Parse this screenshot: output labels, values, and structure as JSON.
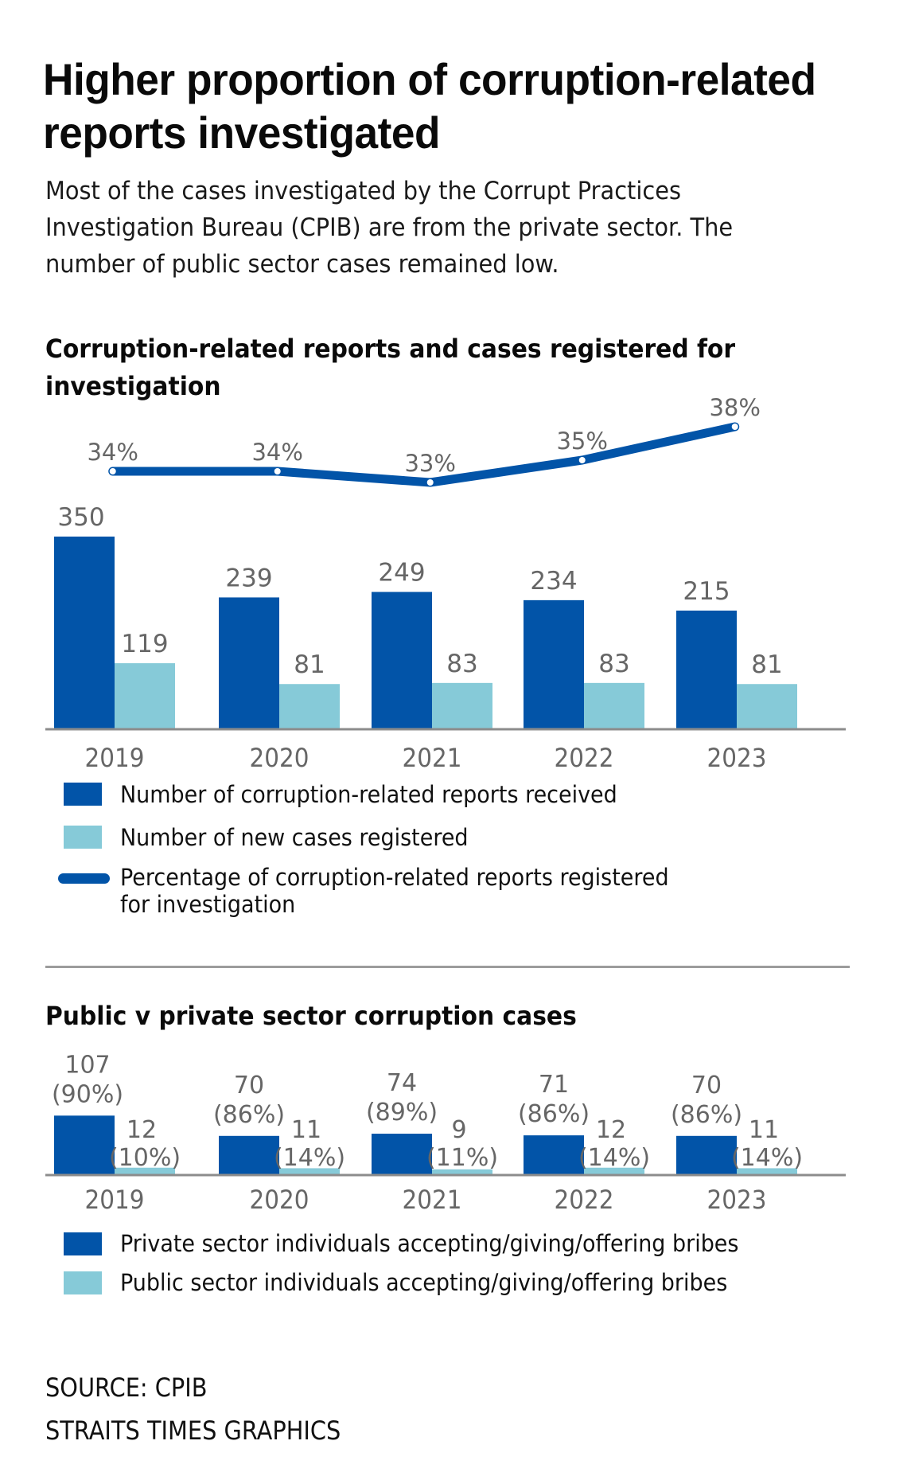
{
  "header": {
    "title": "Higher proportion of corruption-related reports investigated",
    "subtitle": "Most of the cases investigated by the Corrupt Practices Investigation Bureau (CPIB) are from the private sector. The number of public sector cases remained low."
  },
  "colors": {
    "dark_blue": "#0254a8",
    "light_blue": "#86cad8",
    "label_gray": "#666666",
    "axis_gray": "#8c8c8c"
  },
  "chart_data": [
    {
      "type": "bar",
      "title": "Corruption-related reports and cases registered for investigation",
      "categories": [
        "2019",
        "2020",
        "2021",
        "2022",
        "2023"
      ],
      "series": [
        {
          "name": "Number of corruption-related reports received",
          "kind": "bar",
          "color": "#0254a8",
          "values": [
            350,
            239,
            249,
            234,
            215
          ],
          "labels": [
            "350",
            "239",
            "249",
            "234",
            "215"
          ]
        },
        {
          "name": "Number of new cases registered",
          "kind": "bar",
          "color": "#86cad8",
          "values": [
            119,
            81,
            83,
            83,
            81
          ],
          "labels": [
            "119",
            "81",
            "83",
            "83",
            "81"
          ]
        },
        {
          "name": "Percentage of corruption-related reports registered for investigation",
          "kind": "line",
          "color": "#0254a8",
          "values": [
            34,
            34,
            33,
            35,
            38
          ],
          "labels": [
            "34%",
            "34%",
            "33%",
            "35%",
            "38%"
          ]
        }
      ],
      "xlabel": "",
      "ylabel": "",
      "ylim": [
        0,
        350
      ],
      "grid": false,
      "legend": "bottom-left"
    },
    {
      "type": "bar",
      "title": "Public v private sector corruption cases",
      "categories": [
        "2019",
        "2020",
        "2021",
        "2022",
        "2023"
      ],
      "series": [
        {
          "name": "Private sector individuals accepting/giving/offering bribes",
          "color": "#0254a8",
          "values": [
            107,
            70,
            74,
            71,
            70
          ],
          "share_pct": [
            90,
            86,
            89,
            86,
            86
          ],
          "labels": [
            "107",
            "70",
            "74",
            "71",
            "70"
          ],
          "pct_labels": [
            "(90%)",
            "(86%)",
            "(89%)",
            "(86%)",
            "(86%)"
          ]
        },
        {
          "name": "Public sector individuals accepting/giving/offering bribes",
          "color": "#86cad8",
          "values": [
            12,
            11,
            9,
            12,
            11
          ],
          "share_pct": [
            10,
            14,
            11,
            14,
            14
          ],
          "labels": [
            "12",
            "11",
            "9",
            "12",
            "11"
          ],
          "pct_labels": [
            "(10%)",
            "(14%)",
            "(11%)",
            "(14%)",
            "(14%)"
          ]
        }
      ],
      "xlabel": "",
      "ylabel": "",
      "ylim": [
        0,
        350
      ],
      "grid": false,
      "legend": "bottom-left"
    }
  ],
  "legend1": {
    "items": [
      "Number of corruption-related reports received",
      "Number of new cases registered",
      "Percentage of corruption-related reports registered",
      "for investigation"
    ]
  },
  "legend2": {
    "items": [
      "Private sector individuals accepting/giving/offering bribes",
      "Public sector individuals accepting/giving/offering bribes"
    ]
  },
  "footer": {
    "source": "SOURCE: CPIB",
    "credit": "STRAITS TIMES GRAPHICS"
  }
}
